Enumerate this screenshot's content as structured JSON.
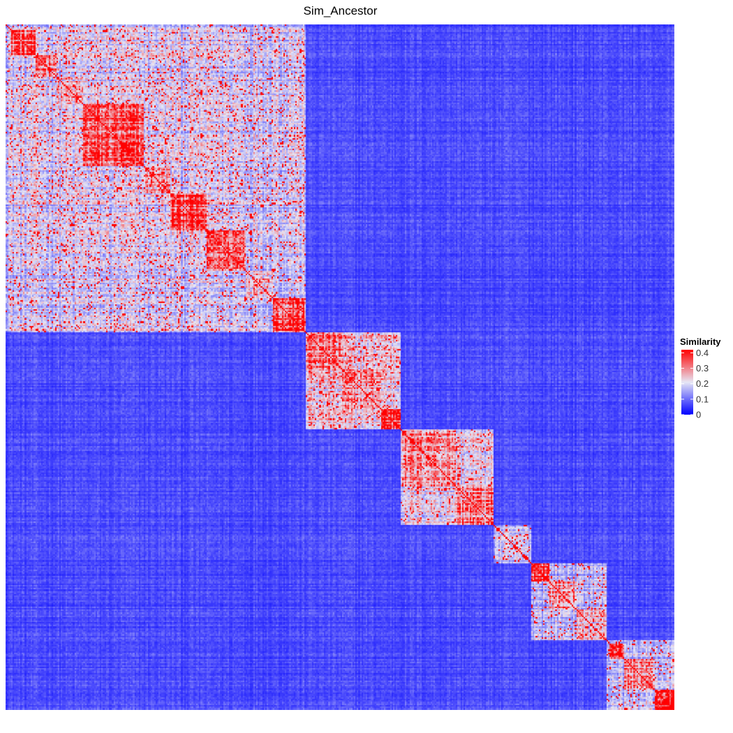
{
  "chart_data": {
    "type": "heatmap",
    "title": "Sim_Ancestor",
    "xlabel": "",
    "ylabel": "",
    "grid": false,
    "legend_placement": "right",
    "legend": {
      "title": "Similarity",
      "ticks": [
        0,
        0.1,
        0.2,
        0.3,
        0.4
      ],
      "tick_labels": [
        "0",
        "0.1",
        "0.2",
        "0.3",
        "0.4"
      ],
      "range": [
        0,
        0.42
      ]
    },
    "colors": {
      "low": "#0000ff",
      "mid": "#e6e6f5",
      "high": "#ff0000"
    },
    "n_items": 445,
    "clusters": [
      {
        "range": [
          0,
          200
        ],
        "mean": 0.2,
        "subclusters": [
          {
            "range": [
              4,
              20
            ],
            "mean": 0.36
          },
          {
            "range": [
              20,
              34
            ],
            "mean": 0.33
          },
          {
            "range": [
              34,
              52
            ],
            "mean": 0.25
          },
          {
            "range": [
              52,
              92
            ],
            "mean": 0.33
          },
          {
            "range": [
              92,
              110
            ],
            "mean": 0.28
          },
          {
            "range": [
              110,
              134
            ],
            "mean": 0.36
          },
          {
            "range": [
              134,
              160
            ],
            "mean": 0.33
          },
          {
            "range": [
              160,
              178
            ],
            "mean": 0.3
          },
          {
            "range": [
              178,
              200
            ],
            "mean": 0.38
          }
        ]
      },
      {
        "range": [
          200,
          263
        ],
        "mean": 0.23,
        "subclusters": [
          {
            "range": [
              200,
              224
            ],
            "mean": 0.3
          },
          {
            "range": [
              224,
              250
            ],
            "mean": 0.28
          },
          {
            "range": [
              250,
              263
            ],
            "mean": 0.4
          }
        ]
      },
      {
        "range": [
          263,
          325
        ],
        "mean": 0.22,
        "subclusters": [
          {
            "range": [
              263,
              300
            ],
            "mean": 0.3
          },
          {
            "range": [
              300,
              325
            ],
            "mean": 0.3
          }
        ]
      },
      {
        "range": [
          325,
          350
        ],
        "mean": 0.17,
        "subclusters": []
      },
      {
        "range": [
          350,
          400
        ],
        "mean": 0.18,
        "subclusters": [
          {
            "range": [
              350,
              362
            ],
            "mean": 0.42
          },
          {
            "range": [
              362,
              380
            ],
            "mean": 0.3
          },
          {
            "range": [
              380,
              400
            ],
            "mean": 0.24
          }
        ]
      },
      {
        "range": [
          400,
          445
        ],
        "mean": 0.18,
        "subclusters": [
          {
            "range": [
              402,
              412
            ],
            "mean": 0.42
          },
          {
            "range": [
              412,
              432
            ],
            "mean": 0.3
          },
          {
            "range": [
              432,
              445
            ],
            "mean": 0.4
          }
        ]
      }
    ],
    "background_mean": 0.07
  }
}
